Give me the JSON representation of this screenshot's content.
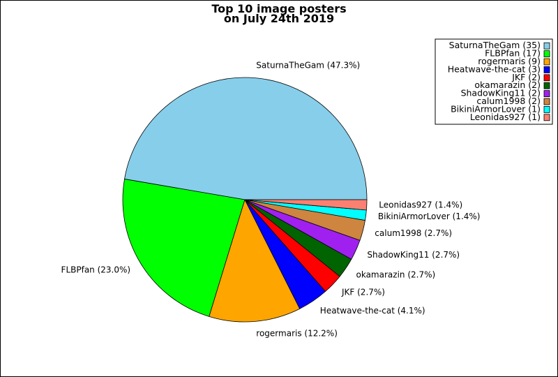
{
  "chart_data": {
    "type": "pie",
    "title": "Top 10 image posters on July 24th 2019",
    "title_lines": [
      "Top 10 image posters",
      "on July 24th 2019"
    ],
    "legend_position": "top-right",
    "start_angle_deg": 0,
    "direction": "counterclockwise",
    "slices": [
      {
        "name": "SaturnaTheGam",
        "value": 35,
        "percent_label": "SaturnaTheGam (47.3%)",
        "legend_label": "SaturnaTheGam (35)",
        "color": "#87CEEB"
      },
      {
        "name": "FLBPfan",
        "value": 17,
        "percent_label": "FLBPfan (23.0%)",
        "legend_label": "FLBPfan (17)",
        "color": "#00FF00"
      },
      {
        "name": "rogermaris",
        "value": 9,
        "percent_label": "rogermaris (12.2%)",
        "legend_label": "rogermaris (9)",
        "color": "#FFA500"
      },
      {
        "name": "Heatwave-the-cat",
        "value": 3,
        "percent_label": "Heatwave-the-cat (4.1%)",
        "legend_label": "Heatwave-the-cat (3)",
        "color": "#0000FF"
      },
      {
        "name": "JKF",
        "value": 2,
        "percent_label": "JKF (2.7%)",
        "legend_label": "JKF (2)",
        "color": "#FF0000"
      },
      {
        "name": "okamarazin",
        "value": 2,
        "percent_label": "okamarazin (2.7%)",
        "legend_label": "okamarazin (2)",
        "color": "#006400"
      },
      {
        "name": "ShadowKing11",
        "value": 2,
        "percent_label": "ShadowKing11 (2.7%)",
        "legend_label": "ShadowKing11 (2)",
        "color": "#A020F0"
      },
      {
        "name": "calum1998",
        "value": 2,
        "percent_label": "calum1998 (2.7%)",
        "legend_label": "calum1998 (2)",
        "color": "#CD853F"
      },
      {
        "name": "BikiniArmorLover",
        "value": 1,
        "percent_label": "BikiniArmorLover (1.4%)",
        "legend_label": "BikiniArmorLover (1)",
        "color": "#00FFFF"
      },
      {
        "name": "Leonidas927",
        "value": 1,
        "percent_label": "Leonidas927 (1.4%)",
        "legend_label": "Leonidas927 (1)",
        "color": "#FA8072"
      }
    ]
  }
}
